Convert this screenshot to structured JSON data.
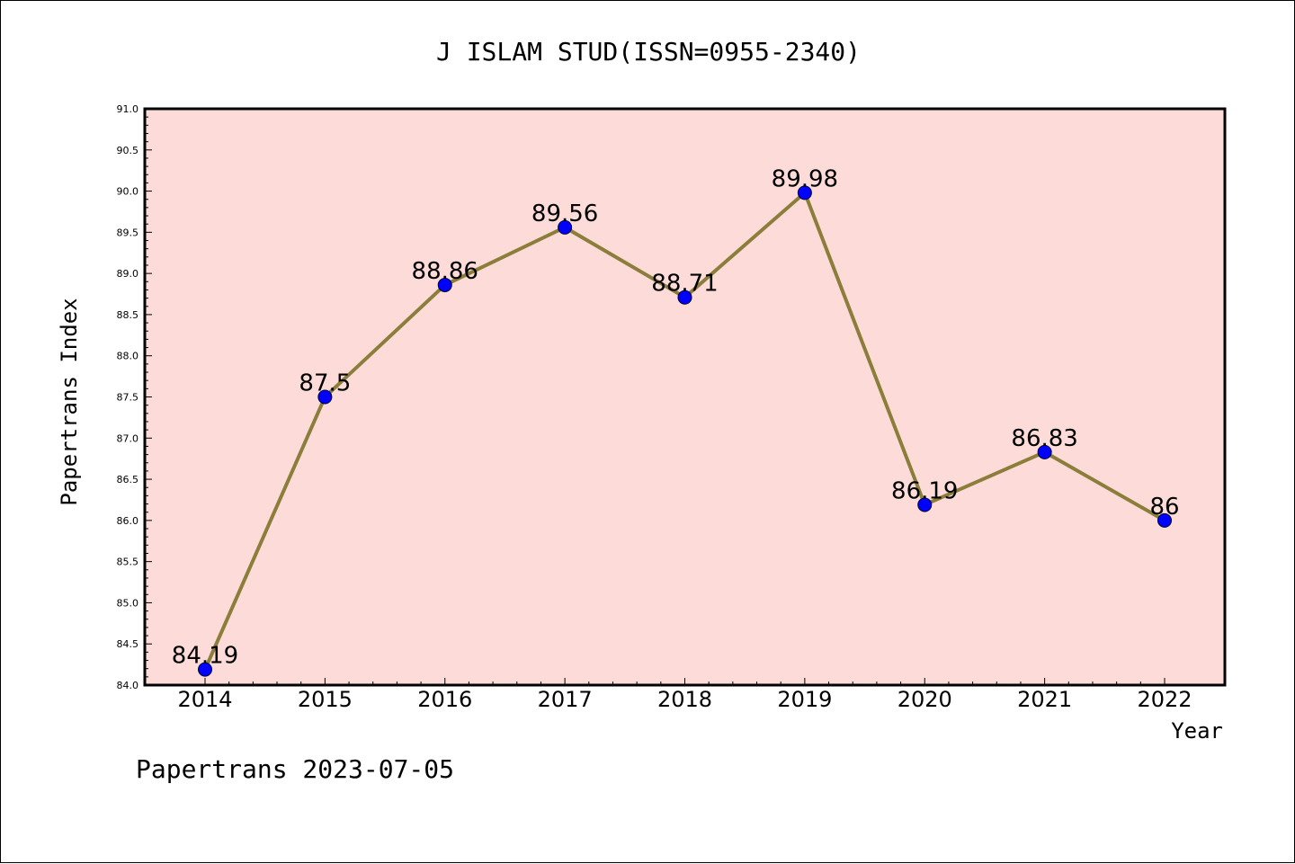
{
  "chart_data": {
    "type": "line",
    "title": "J ISLAM STUD(ISSN=0955-2340)",
    "xlabel": "Year",
    "ylabel": "Papertrans Index",
    "categories": [
      "2014",
      "2015",
      "2016",
      "2017",
      "2018",
      "2019",
      "2020",
      "2021",
      "2022"
    ],
    "values": [
      84.19,
      87.5,
      88.86,
      89.56,
      88.71,
      89.98,
      86.19,
      86.83,
      86
    ],
    "data_labels": [
      "84.19",
      "87.5",
      "88.86",
      "89.56",
      "88.71",
      "89.98",
      "86.19",
      "86.83",
      "86"
    ],
    "ylim": [
      84.0,
      91.0
    ],
    "yticks": [
      "84.0",
      "84.5",
      "85.0",
      "85.5",
      "86.0",
      "86.5",
      "87.0",
      "87.5",
      "88.0",
      "88.5",
      "89.0",
      "89.5",
      "90.0",
      "90.5",
      "91.0"
    ],
    "grid": false,
    "colors": {
      "plot_background": "#fddbd8",
      "line": "#8b7d3a",
      "marker": "#0000ff"
    }
  },
  "footer": "Papertrans 2023-07-05"
}
